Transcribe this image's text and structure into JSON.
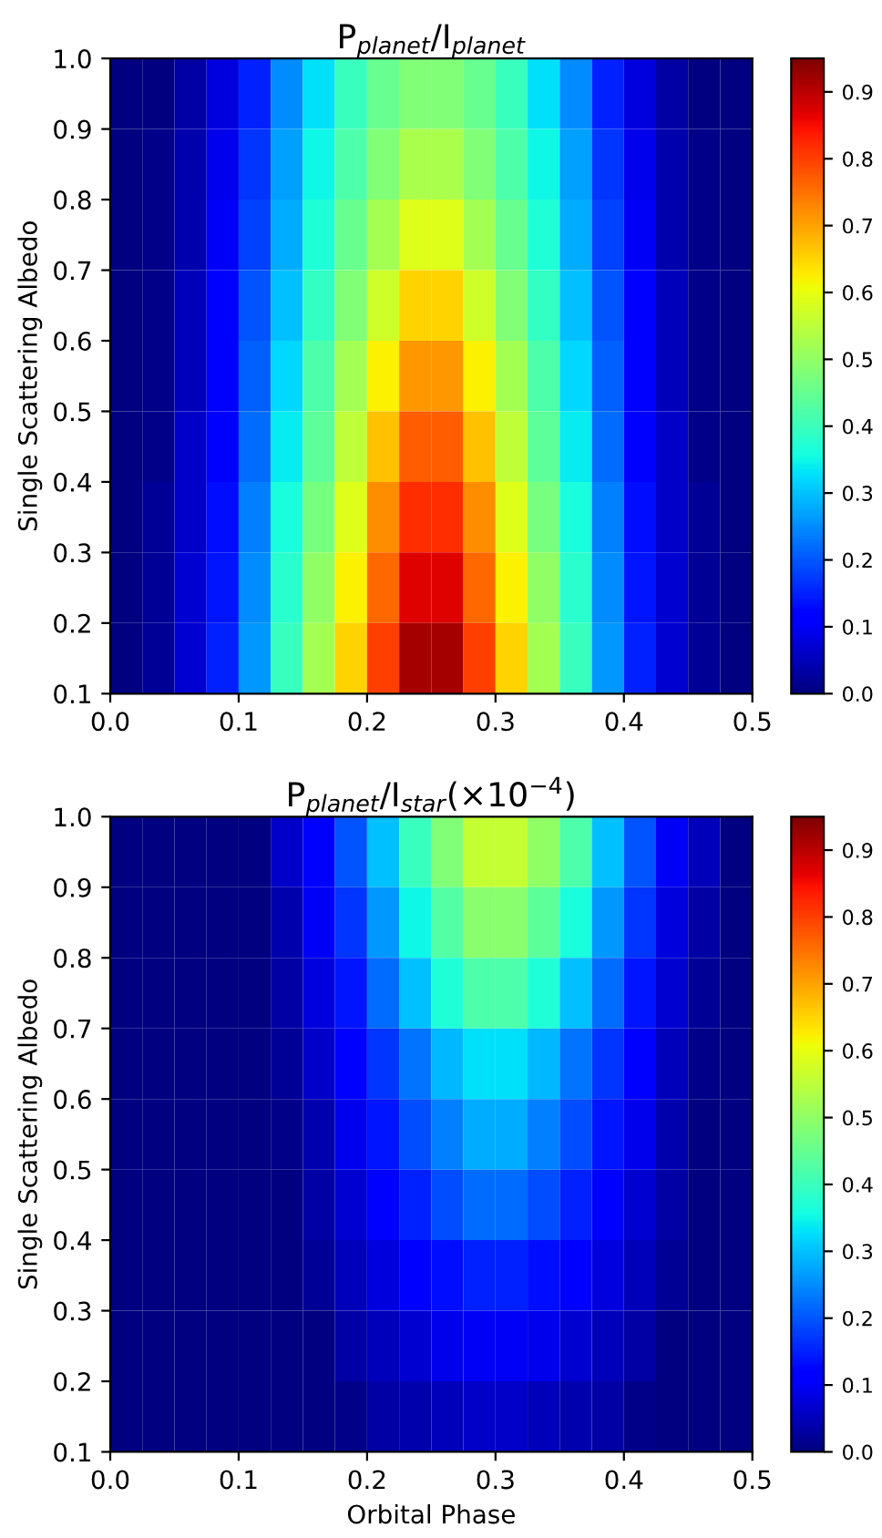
{
  "chart_data": [
    {
      "type": "heatmap",
      "title": "P$_{planet}$/I$_{planet}$",
      "ylabel": "Single Scattering Albedo",
      "x": [
        0.0125,
        0.0375,
        0.0625,
        0.0875,
        0.1125,
        0.1375,
        0.1625,
        0.1875,
        0.2125,
        0.2375,
        0.2625,
        0.2875,
        0.3125,
        0.3375,
        0.3625,
        0.3875,
        0.4125,
        0.4375,
        0.4625,
        0.4875
      ],
      "y": [
        0.95,
        0.85,
        0.75,
        0.65,
        0.55,
        0.45,
        0.35,
        0.25,
        0.15
      ],
      "xlim": [
        0.0,
        0.5
      ],
      "xticks": [
        {
          "value": 0,
          "label": "0.0"
        },
        0.1,
        0.2,
        0.3,
        0.4,
        0.5
      ],
      "ylim": [
        0.1,
        1.0
      ],
      "yticks": [
        0.1,
        0.2,
        0.3,
        0.4,
        0.5,
        0.6,
        0.7,
        0.8,
        0.9,
        {
          "value": 1,
          "label": "1.0"
        }
      ],
      "clim": [
        0,
        0.95
      ],
      "cticks": [
        {
          "value": 0,
          "label": "0.0"
        },
        0.1,
        0.2,
        0.3,
        0.4,
        0.5,
        0.6,
        0.7,
        0.8,
        0.9
      ],
      "cells": [
        [
          0,
          0,
          0.03,
          0.08,
          0.15,
          0.25,
          0.33,
          0.4,
          0.45,
          0.48,
          0.48,
          0.45,
          0.4,
          0.33,
          0.25,
          0.15,
          0.08,
          0.03,
          0,
          0
        ],
        [
          0,
          0.01,
          0.04,
          0.09,
          0.17,
          0.27,
          0.35,
          0.42,
          0.48,
          0.53,
          0.53,
          0.48,
          0.42,
          0.35,
          0.27,
          0.17,
          0.09,
          0.04,
          0.01,
          0
        ],
        [
          0,
          0.01,
          0.04,
          0.1,
          0.18,
          0.28,
          0.37,
          0.45,
          0.52,
          0.59,
          0.59,
          0.52,
          0.45,
          0.37,
          0.28,
          0.18,
          0.1,
          0.04,
          0.01,
          0
        ],
        [
          0,
          0.01,
          0.05,
          0.11,
          0.2,
          0.3,
          0.39,
          0.48,
          0.57,
          0.65,
          0.65,
          0.57,
          0.48,
          0.39,
          0.3,
          0.2,
          0.11,
          0.05,
          0.01,
          0
        ],
        [
          0,
          0.01,
          0.05,
          0.12,
          0.21,
          0.32,
          0.42,
          0.52,
          0.62,
          0.71,
          0.71,
          0.62,
          0.52,
          0.42,
          0.32,
          0.21,
          0.12,
          0.05,
          0.01,
          0
        ],
        [
          0,
          0.01,
          0.06,
          0.12,
          0.22,
          0.34,
          0.44,
          0.55,
          0.67,
          0.77,
          0.77,
          0.67,
          0.55,
          0.44,
          0.34,
          0.22,
          0.12,
          0.06,
          0.01,
          0
        ],
        [
          0,
          0.02,
          0.06,
          0.13,
          0.24,
          0.36,
          0.47,
          0.59,
          0.72,
          0.82,
          0.82,
          0.72,
          0.59,
          0.47,
          0.36,
          0.24,
          0.13,
          0.06,
          0.02,
          0
        ],
        [
          0,
          0.02,
          0.07,
          0.14,
          0.25,
          0.38,
          0.5,
          0.62,
          0.76,
          0.87,
          0.87,
          0.76,
          0.62,
          0.5,
          0.38,
          0.25,
          0.14,
          0.07,
          0.02,
          0
        ],
        [
          0,
          0.02,
          0.07,
          0.15,
          0.26,
          0.4,
          0.52,
          0.65,
          0.8,
          0.92,
          0.92,
          0.8,
          0.65,
          0.52,
          0.4,
          0.26,
          0.15,
          0.07,
          0.02,
          0
        ]
      ]
    },
    {
      "type": "heatmap",
      "title": "P$_{planet}$/I$_{star}$(×10$^{−4}$)",
      "xlabel": "Orbital Phase",
      "ylabel": "Single Scattering Albedo",
      "x": [
        0.0125,
        0.0375,
        0.0625,
        0.0875,
        0.1125,
        0.1375,
        0.1625,
        0.1875,
        0.2125,
        0.2375,
        0.2625,
        0.2875,
        0.3125,
        0.3375,
        0.3625,
        0.3875,
        0.4125,
        0.4375,
        0.4625,
        0.4875
      ],
      "y": [
        0.95,
        0.85,
        0.75,
        0.65,
        0.55,
        0.45,
        0.35,
        0.25,
        0.15
      ],
      "xlim": [
        0.0,
        0.5
      ],
      "xticks": [
        {
          "value": 0,
          "label": "0.0"
        },
        0.1,
        0.2,
        0.3,
        0.4,
        0.5
      ],
      "ylim": [
        0.1,
        1.0
      ],
      "yticks": [
        0.1,
        0.2,
        0.3,
        0.4,
        0.5,
        0.6,
        0.7,
        0.8,
        0.9,
        {
          "value": 1,
          "label": "1.0"
        }
      ],
      "clim": [
        0,
        0.95
      ],
      "cticks": [
        {
          "value": 0,
          "label": "0.0"
        },
        0.1,
        0.2,
        0.3,
        0.4,
        0.5,
        0.6,
        0.7,
        0.8,
        0.9
      ],
      "cells": [
        [
          0,
          0,
          0,
          0,
          0,
          0.06,
          0.12,
          0.2,
          0.3,
          0.4,
          0.48,
          0.56,
          0.56,
          0.5,
          0.42,
          0.3,
          0.2,
          0.1,
          0.05,
          0
        ],
        [
          0,
          0,
          0,
          0,
          0,
          0.04,
          0.1,
          0.17,
          0.26,
          0.35,
          0.43,
          0.49,
          0.49,
          0.44,
          0.36,
          0.26,
          0.17,
          0.08,
          0.03,
          0
        ],
        [
          0,
          0,
          0,
          0,
          0,
          0.03,
          0.08,
          0.14,
          0.22,
          0.3,
          0.37,
          0.42,
          0.42,
          0.37,
          0.3,
          0.22,
          0.14,
          0.07,
          0.02,
          0
        ],
        [
          0,
          0,
          0,
          0,
          0,
          0.02,
          0.06,
          0.11,
          0.17,
          0.23,
          0.29,
          0.33,
          0.33,
          0.29,
          0.23,
          0.17,
          0.11,
          0.05,
          0.01,
          0
        ],
        [
          0,
          0,
          0,
          0,
          0,
          0.01,
          0.04,
          0.09,
          0.14,
          0.19,
          0.24,
          0.28,
          0.28,
          0.24,
          0.19,
          0.14,
          0.09,
          0.04,
          0,
          0
        ],
        [
          0,
          0,
          0,
          0,
          0,
          0,
          0.03,
          0.07,
          0.11,
          0.15,
          0.19,
          0.22,
          0.22,
          0.19,
          0.15,
          0.11,
          0.07,
          0.03,
          0,
          0
        ],
        [
          0,
          0,
          0,
          0,
          0,
          0,
          0.02,
          0.05,
          0.08,
          0.11,
          0.13,
          0.15,
          0.15,
          0.13,
          0.11,
          0.08,
          0.05,
          0.02,
          0,
          0
        ],
        [
          0,
          0,
          0,
          0,
          0,
          0,
          0,
          0.03,
          0.05,
          0.07,
          0.09,
          0.1,
          0.1,
          0.09,
          0.07,
          0.05,
          0.03,
          0,
          0,
          0
        ],
        [
          0,
          0,
          0,
          0,
          0,
          0,
          0,
          0.01,
          0.03,
          0.04,
          0.05,
          0.06,
          0.06,
          0.05,
          0.04,
          0.03,
          0.01,
          0,
          0,
          0
        ]
      ]
    }
  ]
}
